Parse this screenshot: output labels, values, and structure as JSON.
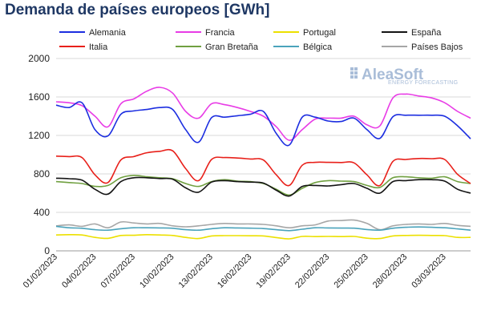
{
  "chart_data": {
    "type": "line",
    "title": "Demanda de países europeos [GWh]",
    "xlabel": "",
    "ylabel": "",
    "ylim": [
      0,
      2000
    ],
    "yticks": [
      0,
      400,
      800,
      1200,
      1600,
      2000
    ],
    "grid": true,
    "legend_position": "top",
    "watermark": {
      "name": "AleaSoft",
      "tagline": "ENERGY FORECASTING"
    },
    "x": [
      "01/02/2023",
      "02/02/2023",
      "03/02/2023",
      "04/02/2023",
      "05/02/2023",
      "06/02/2023",
      "07/02/2023",
      "08/02/2023",
      "09/02/2023",
      "10/02/2023",
      "11/02/2023",
      "12/02/2023",
      "13/02/2023",
      "14/02/2023",
      "15/02/2023",
      "16/02/2023",
      "17/02/2023",
      "18/02/2023",
      "19/02/2023",
      "20/02/2023",
      "21/02/2023",
      "22/02/2023",
      "23/02/2023",
      "24/02/2023",
      "25/02/2023",
      "26/02/2023",
      "27/02/2023",
      "28/02/2023",
      "01/03/2023",
      "02/03/2023",
      "03/03/2023",
      "04/03/2023",
      "05/03/2023"
    ],
    "xtick_labels": [
      "01/02/2023",
      "04/02/2023",
      "07/02/2023",
      "10/02/2023",
      "13/02/2023",
      "16/02/2023",
      "19/02/2023",
      "22/02/2023",
      "25/02/2023",
      "28/02/2023",
      "03/03/2023"
    ],
    "series": [
      {
        "name": "Alemania",
        "color": "#1c2ee0",
        "values": [
          1515,
          1490,
          1540,
          1260,
          1195,
          1420,
          1455,
          1470,
          1490,
          1470,
          1260,
          1130,
          1385,
          1390,
          1405,
          1420,
          1450,
          1220,
          1100,
          1390,
          1390,
          1350,
          1345,
          1380,
          1260,
          1170,
          1395,
          1410,
          1410,
          1410,
          1400,
          1300,
          1165
        ]
      },
      {
        "name": "Francia",
        "color": "#e83ce6",
        "values": [
          1550,
          1540,
          1510,
          1400,
          1290,
          1530,
          1580,
          1660,
          1700,
          1640,
          1450,
          1380,
          1530,
          1520,
          1490,
          1450,
          1400,
          1290,
          1150,
          1260,
          1370,
          1380,
          1380,
          1400,
          1310,
          1300,
          1590,
          1630,
          1610,
          1590,
          1540,
          1450,
          1380
        ]
      },
      {
        "name": "Portugal",
        "color": "#ece000",
        "values": [
          165,
          168,
          165,
          140,
          130,
          160,
          162,
          168,
          165,
          160,
          140,
          128,
          155,
          158,
          158,
          157,
          155,
          138,
          125,
          150,
          148,
          150,
          148,
          150,
          132,
          128,
          155,
          160,
          162,
          160,
          158,
          140,
          140
        ]
      },
      {
        "name": "España",
        "color": "#141414",
        "values": [
          755,
          750,
          735,
          640,
          590,
          720,
          760,
          760,
          752,
          745,
          655,
          610,
          715,
          730,
          720,
          715,
          705,
          630,
          570,
          670,
          680,
          675,
          688,
          700,
          650,
          600,
          720,
          730,
          740,
          740,
          725,
          640,
          600
        ]
      },
      {
        "name": "Italia",
        "color": "#e8201a",
        "values": [
          985,
          980,
          970,
          790,
          710,
          945,
          980,
          1020,
          1035,
          1040,
          855,
          730,
          950,
          970,
          965,
          955,
          945,
          790,
          680,
          890,
          920,
          920,
          918,
          915,
          790,
          680,
          930,
          950,
          960,
          958,
          950,
          795,
          700
        ]
      },
      {
        "name": "Gran Bretaña",
        "color": "#70a040",
        "values": [
          720,
          710,
          700,
          670,
          680,
          760,
          785,
          770,
          760,
          750,
          700,
          670,
          720,
          740,
          725,
          720,
          700,
          640,
          580,
          650,
          710,
          730,
          725,
          720,
          680,
          660,
          760,
          770,
          760,
          755,
          770,
          720,
          700
        ]
      },
      {
        "name": "Bélgica",
        "color": "#4aa3bb",
        "values": [
          255,
          240,
          235,
          220,
          215,
          230,
          240,
          240,
          238,
          235,
          220,
          215,
          230,
          240,
          238,
          236,
          232,
          220,
          210,
          225,
          240,
          238,
          237,
          236,
          222,
          215,
          235,
          245,
          248,
          245,
          240,
          228,
          215
        ]
      },
      {
        "name": "Países Bajos",
        "color": "#a6a6a6",
        "values": [
          260,
          270,
          255,
          280,
          240,
          300,
          290,
          280,
          285,
          260,
          250,
          260,
          275,
          285,
          280,
          280,
          275,
          260,
          240,
          260,
          270,
          310,
          315,
          320,
          285,
          220,
          260,
          275,
          280,
          275,
          285,
          265,
          255
        ]
      }
    ]
  }
}
